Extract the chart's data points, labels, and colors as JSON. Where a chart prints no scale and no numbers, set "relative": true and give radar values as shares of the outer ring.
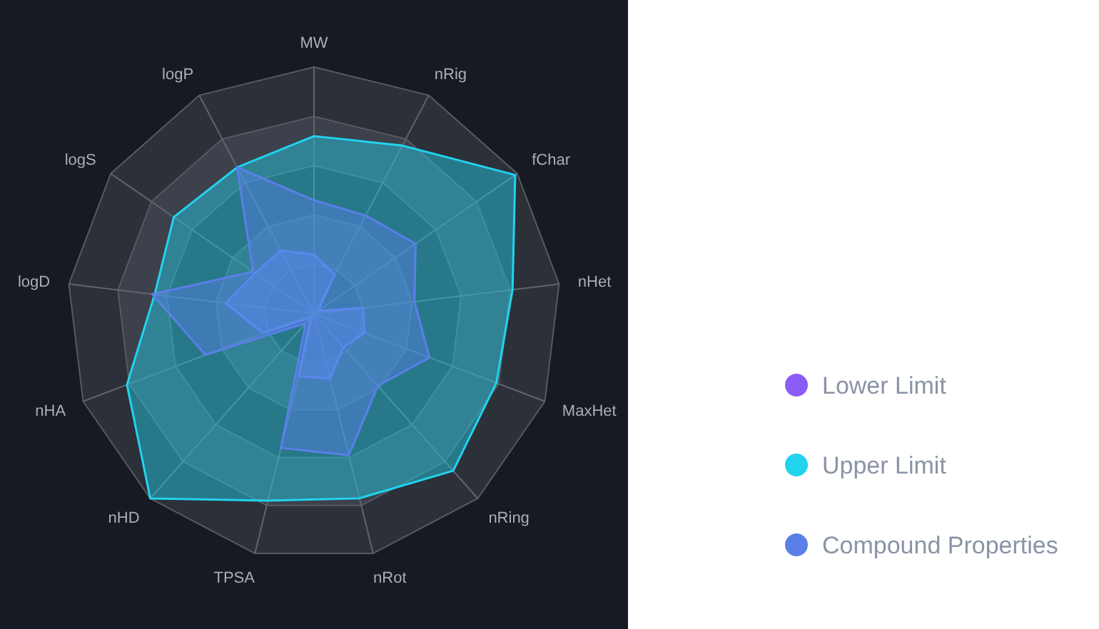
{
  "chart_data": {
    "type": "radar",
    "relative": true,
    "categories": [
      "MW",
      "nRig",
      "fChar",
      "nHet",
      "MaxHet",
      "nRing",
      "nRot",
      "TPSA",
      "nHD",
      "nHA",
      "logD",
      "logS",
      "logP"
    ],
    "series": [
      {
        "name": "Lower Limit",
        "color": "#8b5cf6",
        "values": [
          0.24,
          0.18,
          0.02,
          0.2,
          0.22,
          0.18,
          0.27,
          0.26,
          0.02,
          0.22,
          0.36,
          0.29,
          0.29
        ]
      },
      {
        "name": "Upper Limit",
        "color": "#22d3ee",
        "values": [
          0.72,
          0.77,
          0.99,
          0.81,
          0.79,
          0.85,
          0.77,
          0.78,
          1.0,
          0.81,
          0.65,
          0.69,
          0.67
        ]
      },
      {
        "name": "Compound Properties",
        "color": "#5b7fe8",
        "values": [
          0.46,
          0.45,
          0.5,
          0.41,
          0.5,
          0.39,
          0.59,
          0.56,
          0.05,
          0.47,
          0.66,
          0.3,
          0.67
        ]
      }
    ],
    "grid": true,
    "legend": "right",
    "marker": "none"
  }
}
